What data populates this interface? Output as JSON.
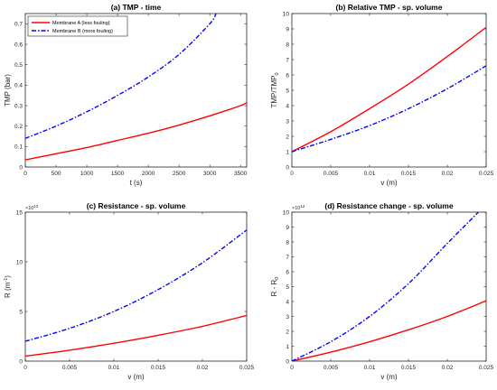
{
  "chart_data": [
    {
      "type": "line",
      "title": "(a) TMP - time",
      "xlabel": "t (s)",
      "ylabel": "TMP (bar)",
      "xlim": [
        0,
        3600
      ],
      "ylim": [
        0,
        0.75
      ],
      "xticks": [
        0,
        500,
        1000,
        1500,
        2000,
        2500,
        3000,
        3500
      ],
      "yticks": [
        0,
        0.1,
        0.2,
        0.3,
        0.4,
        0.5,
        0.6,
        0.7
      ],
      "x": [
        0,
        500,
        1000,
        1500,
        2000,
        2500,
        3000,
        3500,
        3600
      ],
      "series": [
        {
          "name": "Membrane A (less fouling)",
          "color": "#ff0000",
          "style": "solid",
          "values": [
            0.035,
            0.065,
            0.095,
            0.13,
            0.165,
            0.205,
            0.25,
            0.3,
            0.315
          ]
        },
        {
          "name": "Membrane B (more fouling)",
          "color": "#0000ff",
          "style": "dashdot",
          "x": [
            0,
            500,
            1000,
            1500,
            2000,
            2500,
            3000,
            3100
          ],
          "values": [
            0.14,
            0.2,
            0.27,
            0.35,
            0.44,
            0.55,
            0.7,
            0.75
          ]
        }
      ],
      "legend": "top-left"
    },
    {
      "type": "line",
      "title": "(b) Relative TMP - sp. volume",
      "xlabel": "v (m)",
      "ylabel_main": "TMP/TMP",
      "ylabel_sub": "0",
      "xlim": [
        0,
        0.025
      ],
      "ylim": [
        0,
        10
      ],
      "xticks": [
        0,
        0.005,
        0.01,
        0.015,
        0.02,
        0.025
      ],
      "xticklabels": [
        "0",
        "0.005",
        "0.01",
        "0.015",
        "0.02",
        "0.025"
      ],
      "yticks": [
        0,
        1,
        2,
        3,
        4,
        5,
        6,
        7,
        8,
        9,
        10
      ],
      "x": [
        0,
        0.005,
        0.01,
        0.015,
        0.02,
        0.025
      ],
      "series": [
        {
          "name": "Membrane A (less fouling)",
          "color": "#ff0000",
          "style": "solid",
          "values": [
            1.0,
            2.3,
            3.8,
            5.4,
            7.2,
            9.1
          ]
        },
        {
          "name": "Membrane B (more fouling)",
          "color": "#0000ff",
          "style": "dashdot",
          "values": [
            1.0,
            1.8,
            2.7,
            3.8,
            5.1,
            6.6
          ]
        }
      ]
    },
    {
      "type": "line",
      "title": "(c) Resistance - sp. volume",
      "xlabel": "v (m)",
      "ylabel_main": "R (m",
      "ylabel_sup": "-1",
      "ylabel_end": ")",
      "exponent": "×10",
      "exponent_power": "12",
      "xlim": [
        0,
        0.025
      ],
      "ylim": [
        0,
        15
      ],
      "xticks": [
        0,
        0.005,
        0.01,
        0.015,
        0.02,
        0.025
      ],
      "xticklabels": [
        "0",
        "0.005",
        "0.01",
        "0.015",
        "0.02",
        "0.025"
      ],
      "yticks": [
        0,
        5,
        10,
        15
      ],
      "x": [
        0,
        0.005,
        0.01,
        0.015,
        0.02,
        0.025
      ],
      "series": [
        {
          "name": "Membrane A (less fouling)",
          "color": "#ff0000",
          "style": "solid",
          "values": [
            0.5,
            1.1,
            1.8,
            2.6,
            3.5,
            4.6
          ]
        },
        {
          "name": "Membrane B (more fouling)",
          "color": "#0000ff",
          "style": "dashdot",
          "values": [
            2.0,
            3.3,
            5.0,
            7.2,
            9.9,
            13.2
          ]
        }
      ]
    },
    {
      "type": "line",
      "title": "(d) Resistance change - sp. volume",
      "xlabel": "v (m)",
      "ylabel_main": "R - R",
      "ylabel_sub": "0",
      "exponent": "×10",
      "exponent_power": "12",
      "xlim": [
        0,
        0.025
      ],
      "ylim": [
        0,
        10
      ],
      "xticks": [
        0,
        0.005,
        0.01,
        0.015,
        0.02,
        0.025
      ],
      "xticklabels": [
        "0",
        "0.005",
        "0.01",
        "0.015",
        "0.02",
        "0.025"
      ],
      "yticks": [
        0,
        1,
        2,
        3,
        4,
        5,
        6,
        7,
        8,
        9,
        10
      ],
      "series": [
        {
          "name": "Membrane A (less fouling)",
          "color": "#ff0000",
          "style": "solid",
          "x": [
            0,
            0.005,
            0.01,
            0.015,
            0.02,
            0.025
          ],
          "values": [
            0,
            0.6,
            1.3,
            2.1,
            3.0,
            4.05
          ]
        },
        {
          "name": "Membrane B (more fouling)",
          "color": "#0000ff",
          "style": "dashdot",
          "x": [
            0,
            0.005,
            0.01,
            0.015,
            0.02,
            0.024
          ],
          "values": [
            0,
            1.3,
            3.0,
            5.2,
            7.9,
            10.0
          ]
        }
      ]
    }
  ]
}
